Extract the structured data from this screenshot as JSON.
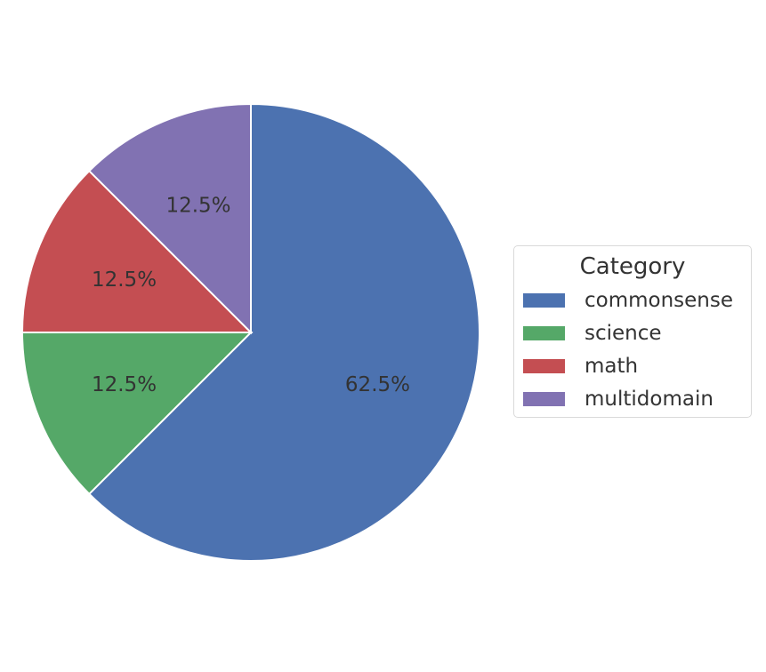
{
  "chart_data": {
    "type": "pie",
    "title": "",
    "categories": [
      "commonsense",
      "science",
      "math",
      "multidomain"
    ],
    "values": [
      62.5,
      12.5,
      12.5,
      12.5
    ],
    "labels": [
      "62.5%",
      "12.5%",
      "12.5%",
      "12.5%"
    ],
    "colors": [
      "#4c72b0",
      "#55a868",
      "#c44e52",
      "#8172b2"
    ],
    "start_angle_deg": 90,
    "direction": "clockwise",
    "legend": {
      "title": "Category",
      "placement": "right"
    }
  }
}
